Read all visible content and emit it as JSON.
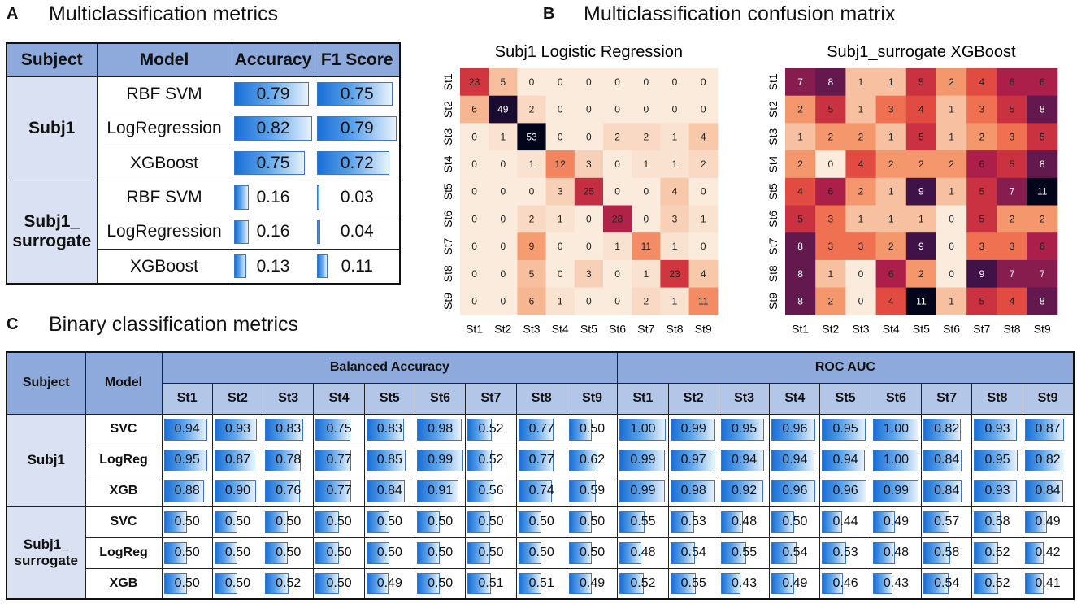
{
  "panelA": {
    "label": "A",
    "title": "Multiclassification metrics",
    "headers": [
      "Subject",
      "Model",
      "Accuracy",
      "F1 Score"
    ],
    "groups": [
      {
        "subject": "Subj1",
        "rows": [
          {
            "model": "RBF SVM",
            "accuracy": "0.79",
            "f1": "0.75"
          },
          {
            "model": "LogRegression",
            "accuracy": "0.82",
            "f1": "0.79"
          },
          {
            "model": "XGBoost",
            "accuracy": "0.75",
            "f1": "0.72"
          }
        ]
      },
      {
        "subject": "Subj1_\nsurrogate",
        "rows": [
          {
            "model": "RBF SVM",
            "accuracy": "0.16",
            "f1": "0.03"
          },
          {
            "model": "LogRegression",
            "accuracy": "0.16",
            "f1": "0.04"
          },
          {
            "model": "XGBoost",
            "accuracy": "0.13",
            "f1": "0.11"
          }
        ]
      }
    ]
  },
  "panelB": {
    "label": "B",
    "title": "Multiclassification confusion matrix"
  },
  "panelC": {
    "label": "C",
    "title": "Binary classification metrics",
    "subject_header": "Subject",
    "model_header": "Model",
    "group_headers": [
      "Balanced Accuracy",
      "ROC AUC"
    ],
    "classes": [
      "St1",
      "St2",
      "St3",
      "St4",
      "St5",
      "St6",
      "St7",
      "St8",
      "St9"
    ],
    "groups": [
      {
        "subject": "Subj1",
        "rows": [
          {
            "model": "SVC",
            "ba": [
              "0.94",
              "0.93",
              "0.83",
              "0.75",
              "0.83",
              "0.98",
              "0.52",
              "0.77",
              "0.50"
            ],
            "auc": [
              "1.00",
              "0.99",
              "0.95",
              "0.96",
              "0.95",
              "1.00",
              "0.82",
              "0.93",
              "0.87"
            ]
          },
          {
            "model": "LogReg",
            "ba": [
              "0.95",
              "0.87",
              "0.78",
              "0.77",
              "0.85",
              "0.99",
              "0.52",
              "0.77",
              "0.62"
            ],
            "auc": [
              "0.99",
              "0.97",
              "0.94",
              "0.94",
              "0.94",
              "1.00",
              "0.84",
              "0.95",
              "0.82"
            ]
          },
          {
            "model": "XGB",
            "ba": [
              "0.88",
              "0.90",
              "0.76",
              "0.77",
              "0.84",
              "0.91",
              "0.56",
              "0.74",
              "0.59"
            ],
            "auc": [
              "0.99",
              "0.98",
              "0.92",
              "0.96",
              "0.96",
              "0.99",
              "0.84",
              "0.93",
              "0.84"
            ]
          }
        ]
      },
      {
        "subject": "Subj1_\nsurrogate",
        "rows": [
          {
            "model": "SVC",
            "ba": [
              "0.50",
              "0.50",
              "0.50",
              "0.50",
              "0.50",
              "0.50",
              "0.50",
              "0.50",
              "0.50"
            ],
            "auc": [
              "0.55",
              "0.53",
              "0.48",
              "0.50",
              "0.44",
              "0.49",
              "0.57",
              "0.58",
              "0.49"
            ]
          },
          {
            "model": "LogReg",
            "ba": [
              "0.50",
              "0.50",
              "0.50",
              "0.50",
              "0.50",
              "0.50",
              "0.50",
              "0.50",
              "0.50"
            ],
            "auc": [
              "0.48",
              "0.54",
              "0.55",
              "0.54",
              "0.53",
              "0.48",
              "0.58",
              "0.52",
              "0.42"
            ]
          },
          {
            "model": "XGB",
            "ba": [
              "0.50",
              "0.50",
              "0.52",
              "0.50",
              "0.49",
              "0.50",
              "0.51",
              "0.51",
              "0.49"
            ],
            "auc": [
              "0.52",
              "0.55",
              "0.43",
              "0.49",
              "0.46",
              "0.43",
              "0.54",
              "0.52",
              "0.41"
            ]
          }
        ]
      }
    ]
  },
  "chart_data": [
    {
      "type": "heatmap",
      "title": "Subj1 Logistic Regression",
      "xlabels": [
        "St1",
        "St2",
        "St3",
        "St4",
        "St5",
        "St6",
        "St7",
        "St8",
        "St9"
      ],
      "ylabels": [
        "St1",
        "St2",
        "St3",
        "St4",
        "St5",
        "St6",
        "St7",
        "St8",
        "St9"
      ],
      "max": 53,
      "values": [
        [
          23,
          5,
          0,
          0,
          0,
          0,
          0,
          0,
          0
        ],
        [
          6,
          49,
          2,
          0,
          0,
          0,
          0,
          0,
          0
        ],
        [
          0,
          1,
          53,
          0,
          0,
          2,
          2,
          1,
          4
        ],
        [
          0,
          0,
          1,
          12,
          3,
          0,
          1,
          1,
          2
        ],
        [
          0,
          0,
          0,
          3,
          25,
          0,
          0,
          4,
          0
        ],
        [
          0,
          0,
          2,
          1,
          0,
          28,
          0,
          3,
          1
        ],
        [
          0,
          0,
          9,
          0,
          0,
          1,
          11,
          1,
          0
        ],
        [
          0,
          0,
          5,
          0,
          3,
          0,
          1,
          23,
          4
        ],
        [
          0,
          0,
          6,
          1,
          0,
          0,
          2,
          1,
          11
        ]
      ]
    },
    {
      "type": "heatmap",
      "title": "Subj1_surrogate  XGBoost",
      "xlabels": [
        "St1",
        "St2",
        "St3",
        "St4",
        "St5",
        "St6",
        "St7",
        "St8",
        "St9"
      ],
      "ylabels": [
        "St1",
        "St2",
        "St3",
        "St4",
        "St5",
        "St6",
        "St7",
        "St8",
        "St9"
      ],
      "max": 11,
      "values": [
        [
          7,
          8,
          1,
          1,
          5,
          2,
          4,
          6,
          6
        ],
        [
          2,
          5,
          1,
          3,
          4,
          1,
          3,
          5,
          8
        ],
        [
          1,
          2,
          2,
          1,
          5,
          1,
          2,
          3,
          5
        ],
        [
          2,
          0,
          4,
          2,
          2,
          2,
          6,
          5,
          8
        ],
        [
          4,
          6,
          2,
          1,
          9,
          1,
          5,
          7,
          11
        ],
        [
          5,
          3,
          1,
          1,
          1,
          0,
          5,
          2,
          2
        ],
        [
          8,
          3,
          3,
          2,
          9,
          0,
          3,
          3,
          6
        ],
        [
          8,
          1,
          0,
          6,
          2,
          0,
          9,
          7,
          7
        ],
        [
          8,
          2,
          0,
          4,
          11,
          1,
          5,
          4,
          8
        ]
      ]
    }
  ]
}
